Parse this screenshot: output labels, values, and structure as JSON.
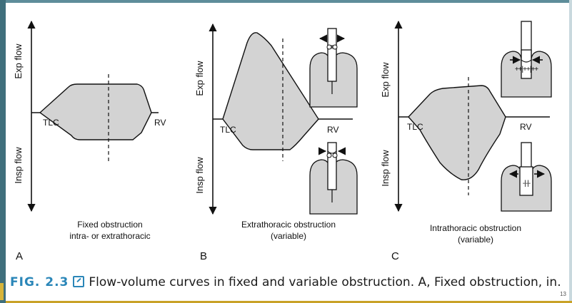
{
  "panels": [
    {
      "letter": "A",
      "exp_label": "Exp flow",
      "insp_label": "Insp flow",
      "tlc": "TLC",
      "rv": "RV",
      "caption_line1": "Fixed obstruction",
      "caption_line2": "intra- or extrathoracic"
    },
    {
      "letter": "B",
      "exp_label": "Exp flow",
      "insp_label": "Insp flow",
      "tlc": "TLC",
      "rv": "RV",
      "caption_line1": "Extrathoracic obstruction",
      "caption_line2": "(variable)"
    },
    {
      "letter": "C",
      "exp_label": "Exp flow",
      "insp_label": "Insp flow",
      "tlc": "TLC",
      "rv": "RV",
      "caption_line1": "Intrathoracic obstruction",
      "caption_line2": "(variable)"
    }
  ],
  "caption": {
    "figure_label": "FIG. 2.3",
    "text": "Flow-volume curves in fixed and variable obstruction. A, Fixed obstruction, in…"
  },
  "page_number": "13",
  "colors": {
    "curve_fill": "#d3d3d3",
    "lung_fill": "#d3d3d3",
    "line": "#111111",
    "figure_label": "#2a86b8",
    "frame": "#3f6f7c"
  }
}
